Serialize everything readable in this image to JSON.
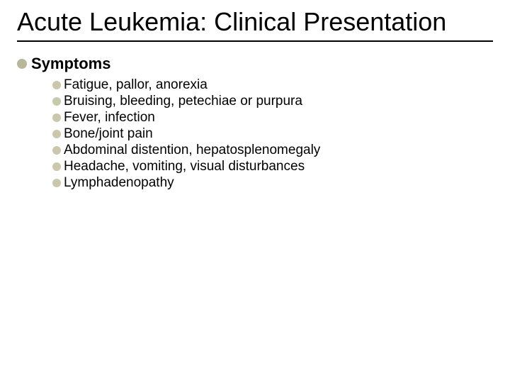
{
  "colors": {
    "background": "#ffffff",
    "text": "#000000",
    "bullet_level1": "#b8b79a",
    "bullet_level2": "#c9c8ad",
    "title_underline": "#000000"
  },
  "typography": {
    "title_fontsize": 36,
    "title_weight": 400,
    "level1_fontsize": 22,
    "level1_weight": 700,
    "level2_fontsize": 19,
    "level2_weight": 400,
    "font_family": "Arial, Helvetica, sans-serif"
  },
  "title": "Acute Leukemia: Clinical Presentation",
  "content": {
    "heading": "Symptoms",
    "items": [
      "Fatigue, pallor, anorexia",
      "Bruising, bleeding, petechiae or purpura",
      "Fever, infection",
      "Bone/joint pain",
      "Abdominal distention, hepatosplenomegaly",
      "Headache, vomiting, visual disturbances",
      "Lymphadenopathy"
    ]
  }
}
